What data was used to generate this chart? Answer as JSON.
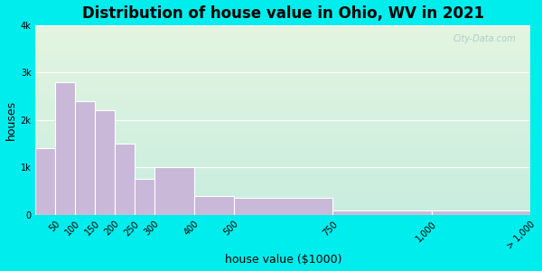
{
  "title": "Distribution of house value in Ohio, WV in 2021",
  "xlabel": "house value ($1000)",
  "ylabel": "houses",
  "bin_edges": [
    0,
    50,
    100,
    150,
    200,
    250,
    300,
    400,
    500,
    750,
    1000,
    1250
  ],
  "bin_labels": [
    "50",
    "100",
    "150",
    "200",
    "250",
    "300",
    "400",
    "500",
    "750",
    "1,000",
    "> 1,000"
  ],
  "bar_values": [
    1400,
    2800,
    2400,
    2200,
    1500,
    750,
    1000,
    400,
    350,
    100,
    100
  ],
  "bar_color": "#c9b8d8",
  "bar_edge_color": "#ffffff",
  "background_outer": "#00eded",
  "background_inner_top": "#e4f5df",
  "background_inner_bottom": "#c8ede0",
  "ytick_labels": [
    "0",
    "1k",
    "2k",
    "3k",
    "4k"
  ],
  "ytick_values": [
    0,
    1000,
    2000,
    3000,
    4000
  ],
  "ylim": [
    0,
    4000
  ],
  "xlim_max": 1250,
  "title_fontsize": 12,
  "label_fontsize": 9,
  "tick_fontsize": 7,
  "watermark_text": "City-Data.com"
}
